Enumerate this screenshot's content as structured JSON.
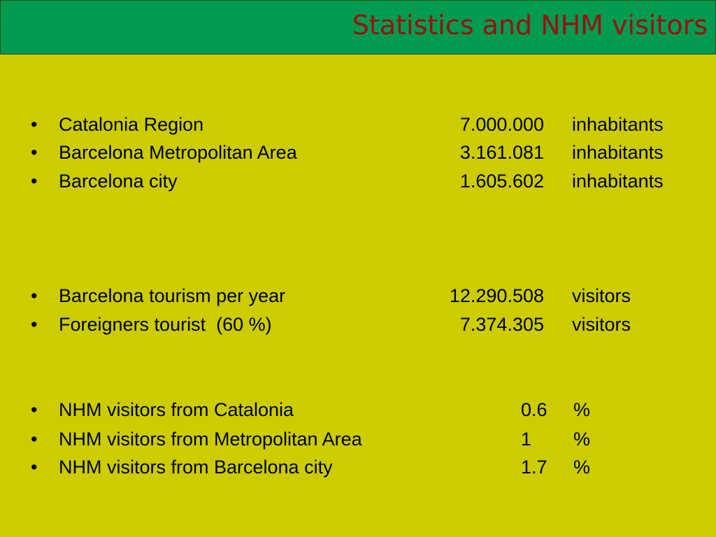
{
  "header": {
    "title": "Statistics and NHM visitors"
  },
  "sections": [
    {
      "items": [
        {
          "bullet": "•",
          "label": "Catalonia Region",
          "value": "7.000.000",
          "unit": "inhabitants"
        },
        {
          "bullet": "•",
          "label": "Barcelona Metropolitan Area",
          "value": "3.161.081",
          "unit": "inhabitants"
        },
        {
          "bullet": "•",
          "label": "Barcelona city",
          "value": "1.605.602",
          "unit": "inhabitants"
        }
      ]
    },
    {
      "items": [
        {
          "bullet": "•",
          "label": "Barcelona tourism per year",
          "value": "12.290.508",
          "unit": "visitors"
        },
        {
          "bullet": "•",
          "label": "Foreigners tourist  (60 %)",
          "value": "7.374.305",
          "unit": "visitors"
        }
      ]
    },
    {
      "items": [
        {
          "bullet": "•",
          "label": "NHM visitors from Catalonia",
          "value": "0.6",
          "unit": "%"
        },
        {
          "bullet": "•",
          "label": "NHM visitors from Metropolitan Area",
          "value": "1",
          "unit": "%"
        },
        {
          "bullet": "•",
          "label": "NHM visitors from Barcelona city",
          "value": "1.7",
          "unit": "%"
        }
      ]
    }
  ]
}
